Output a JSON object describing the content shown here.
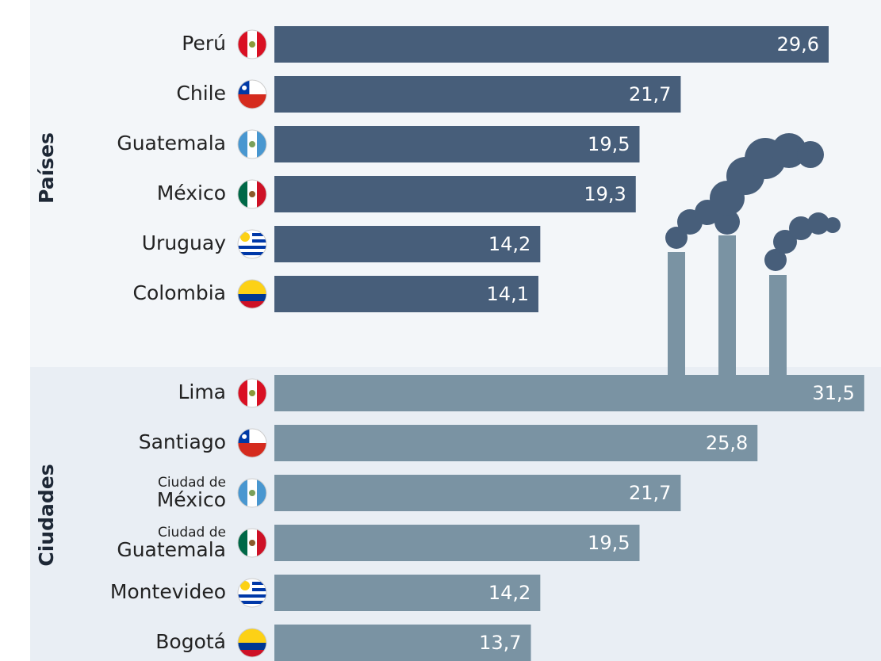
{
  "chart_data": [
    {
      "type": "bar",
      "group_label": "Países",
      "color": "#475e7a",
      "categories": [
        "Perú",
        "Chile",
        "Guatemala",
        "México",
        "Uruguay",
        "Colombia"
      ],
      "values": [
        29.6,
        21.7,
        19.5,
        19.3,
        14.2,
        14.1
      ],
      "value_labels": [
        "29,6",
        "21,7",
        "19,5",
        "19,3",
        "14,2",
        "14,1"
      ]
    },
    {
      "type": "bar",
      "group_label": "Ciudades",
      "color": "#7a93a3",
      "categories": [
        "Lima",
        "Santiago",
        {
          "line1": "Ciudad de",
          "line2": "México"
        },
        {
          "line1": "Ciudad de",
          "line2": "Guatemala"
        },
        "Montevideo",
        "Bogotá"
      ],
      "values": [
        31.5,
        25.8,
        21.7,
        19.5,
        14.2,
        13.7
      ],
      "value_labels": [
        "31,5",
        "25,8",
        "21,7",
        "19,5",
        "14,2",
        "13,7"
      ]
    }
  ]
}
